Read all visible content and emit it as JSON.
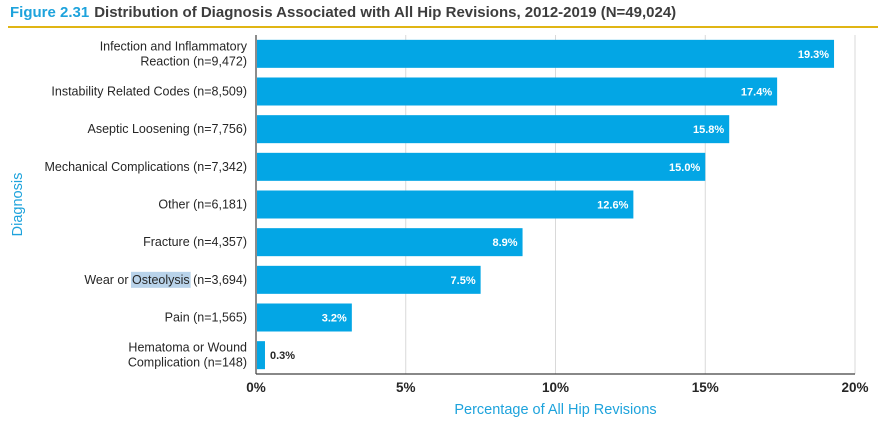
{
  "figure": {
    "number": "Figure 2.31",
    "title": "Distribution of Diagnosis Associated with All Hip Revisions, 2012-2019 (N=49,024)"
  },
  "colors": {
    "bar": "#03a6e5",
    "accent": "#1ea3dc",
    "rule": "#e0b514",
    "text": "#262626",
    "grid": "#d9d9d9",
    "highlight": "#b9d3ea"
  },
  "chart_data": {
    "type": "bar",
    "orientation": "horizontal",
    "xlabel": "Percentage of All Hip Revisions",
    "ylabel": "Diagnosis",
    "xlim": [
      0,
      20
    ],
    "xticks": [
      0,
      5,
      10,
      15,
      20
    ],
    "xtick_labels": [
      "0%",
      "5%",
      "10%",
      "15%",
      "20%"
    ],
    "grid": "vertical",
    "categories": [
      [
        "Infection and Inflammatory",
        "Reaction (n=9,472)"
      ],
      [
        "Instability Related Codes (n=8,509)"
      ],
      [
        "Aseptic Loosening (n=7,756)"
      ],
      [
        "Mechanical Complications (n=7,342)"
      ],
      [
        "Other (n=6,181)"
      ],
      [
        "Fracture (n=4,357)"
      ],
      [
        "Wear or Osteolysis (n=3,694)"
      ],
      [
        "Pain (n=1,565)"
      ],
      [
        "Hematoma or Wound",
        "Complication (n=148)"
      ]
    ],
    "values": [
      19.3,
      17.4,
      15.8,
      15.0,
      12.6,
      8.9,
      7.5,
      3.2,
      0.3
    ],
    "value_labels": [
      "19.3%",
      "17.4%",
      "15.8%",
      "15.0%",
      "12.6%",
      "8.9%",
      "7.5%",
      "3.2%",
      "0.3%"
    ],
    "highlighted_text": "Osteolysis"
  }
}
